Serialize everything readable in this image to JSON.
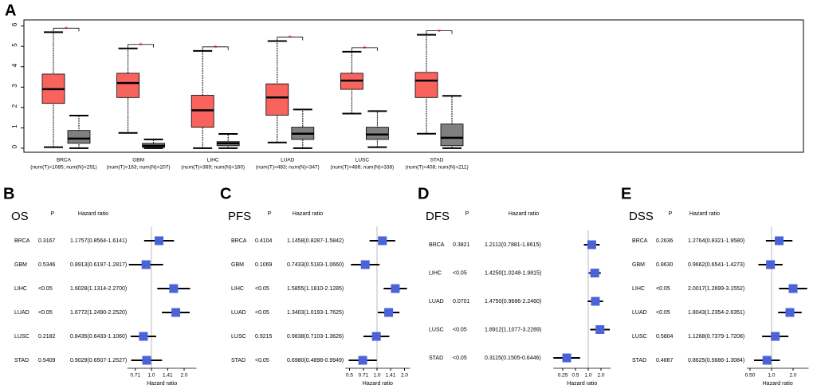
{
  "chart_data": [
    {
      "type": "box",
      "panel": "A",
      "categories": [
        "BRCA",
        "GBM",
        "LIHC",
        "LUAD",
        "LUSC",
        "STAD"
      ],
      "sample_labels": [
        "(num(T)=1085; num(N)=291)",
        "(num(T)=163; num(N)=207)",
        "(num(T)=369; num(N)=160)",
        "(num(T)=483; num(N)=347)",
        "(num(T)=486; num(N)=338)",
        "(num(T)=408; num(N)=211)"
      ],
      "significance": "*",
      "series": [
        {
          "color": "#f8635e",
          "values": [
            [
              0.05,
              2.2,
              2.9,
              3.64,
              5.7
            ],
            [
              0.75,
              2.49,
              3.2,
              3.68,
              4.9
            ],
            [
              0,
              1.03,
              1.86,
              2.6,
              4.78
            ],
            [
              0.28,
              1.62,
              2.49,
              3.16,
              5.26
            ],
            [
              1.7,
              2.89,
              3.32,
              3.68,
              4.74
            ],
            [
              0.71,
              2.49,
              3.32,
              3.72,
              5.57
            ]
          ]
        },
        {
          "color": "#808080",
          "values": [
            [
              0,
              0.24,
              0.47,
              0.87,
              1.6
            ],
            [
              0,
              0.04,
              0.12,
              0.24,
              0.43
            ],
            [
              0,
              0.12,
              0.24,
              0.32,
              0.7
            ],
            [
              0,
              0.43,
              0.71,
              1.03,
              1.9
            ],
            [
              0.05,
              0.43,
              0.67,
              1.03,
              1.82
            ],
            [
              0,
              0.12,
              0.51,
              1.19,
              2.57
            ]
          ]
        }
      ],
      "ylim": [
        -0.2,
        6.3
      ],
      "yticks": [
        0,
        1,
        2,
        3,
        4,
        5,
        6
      ]
    },
    {
      "type": "forest",
      "panel": "B",
      "title": "OS",
      "p_header": "P",
      "hr_header": "Hazard ratio",
      "x_label": "Hazard ratio",
      "log_scale": true,
      "color": "#4b63d8",
      "categories": [
        "BRCA",
        "GBM",
        "LIHC",
        "LUAD",
        "LUSC",
        "STAD"
      ],
      "p_values": [
        "0.3167",
        "0.5346",
        "<0.05",
        "<0.05",
        "0.2182",
        "0.5409"
      ],
      "values": [
        1.1757,
        0.8913,
        1.6028,
        1.6772,
        0.8435,
        0.9029
      ],
      "lower": [
        0.8564,
        0.6197,
        1.1314,
        1.249,
        0.6433,
        0.6507
      ],
      "upper": [
        1.6141,
        1.2817,
        2.27,
        2.252,
        1.106,
        1.2527
      ],
      "value_labels": [
        "1.1757(0.8564-1.6141)",
        "0.8913(0.6197-1.2817)",
        "1.6028(1.1314-2.2700)",
        "1.6772(1.2490-2.2520)",
        "0.8435(0.6433-1.1060)",
        "0.9029(0.6507-1.2527)"
      ],
      "xlim": [
        0.6,
        2.6
      ],
      "xticks": [
        0.71,
        {
          "value": 1,
          "label": "1.0"
        },
        1.41,
        {
          "value": 2,
          "label": "2.0"
        }
      ]
    },
    {
      "type": "forest",
      "panel": "C",
      "title": "PFS",
      "p_header": "P",
      "hr_header": "Hazard ratio",
      "x_label": "Hazard ratio",
      "log_scale": true,
      "color": "#4b63d8",
      "categories": [
        "BRCA",
        "GBM",
        "LIHC",
        "LUAD",
        "LUSC",
        "STAD"
      ],
      "p_values": [
        "0.4104",
        "0.1069",
        "<0.05",
        "<0.05",
        "0.9215",
        "<0.05"
      ],
      "values": [
        1.1458,
        0.7433,
        1.5855,
        1.3403,
        0.9838,
        0.698
      ],
      "lower": [
        0.8287,
        0.5183,
        1.181,
        1.0193,
        0.7103,
        0.4898
      ],
      "upper": [
        1.5842,
        1.066,
        2.1285,
        1.7625,
        1.3626,
        0.9949
      ],
      "value_labels": [
        "1.1458(0.8287-1.5842)",
        "0.7433(0.5183-1.0660)",
        "1.5855(1.1810-2.1285)",
        "1.3403(1.0193-1.7625)",
        "0.9838(0.7103-1.3626)",
        "0.6980(0.4898-0.9949)"
      ],
      "xlim": [
        0.45,
        2.3
      ],
      "xticks": [
        0.5,
        0.71,
        {
          "value": 1,
          "label": "1.0"
        },
        1.41,
        {
          "value": 2,
          "label": "2.0"
        }
      ]
    },
    {
      "type": "forest",
      "panel": "D",
      "title": "DFS",
      "p_header": "P",
      "hr_header": "Hazard ratio",
      "x_label": "Hazard ratio",
      "log_scale": true,
      "color": "#4b63d8",
      "categories": [
        "BRCA",
        "LIHC",
        "LUAD",
        "LUSC",
        "STAD"
      ],
      "p_values": [
        "0.3821",
        "<0.05",
        "0.0701",
        "<0.05",
        "<0.05"
      ],
      "values": [
        1.2112,
        1.425,
        1.475,
        1.8912,
        0.3115
      ],
      "lower": [
        0.7881,
        1.0248,
        0.9686,
        1.1077,
        0.1505
      ],
      "upper": [
        1.8615,
        1.9815,
        2.246,
        3.2289,
        0.6446
      ],
      "value_labels": [
        "1.2112(0.7881-1.8615)",
        "1.4250(1.0248-1.9815)",
        "1.4750(0.9686-2.2460)",
        "1.8912(1.1077-3.2289)",
        "0.3115(0.1505-0.6446)"
      ],
      "xlim": [
        0.15,
        3.4
      ],
      "xticks": [
        0.25,
        0.5,
        {
          "value": 1,
          "label": "1.0"
        },
        {
          "value": 2,
          "label": "2.0"
        }
      ]
    },
    {
      "type": "forest",
      "panel": "E",
      "title": "DSS",
      "p_header": "P",
      "hr_header": "Hazard ratio",
      "x_label": "Hazard ratio",
      "log_scale": true,
      "color": "#4b63d8",
      "categories": [
        "BRCA",
        "GBM",
        "LIHC",
        "LUAD",
        "LUSC",
        "STAD"
      ],
      "p_values": [
        "0.2636",
        "0.8630",
        "<0.05",
        "<0.05",
        "0.5804",
        "0.4867"
      ],
      "values": [
        1.2764,
        0.9662,
        2.0017,
        1.8043,
        1.1268,
        0.8625
      ],
      "lower": [
        0.8321,
        0.6541,
        1.2699,
        1.2354,
        0.7379,
        0.5686
      ],
      "upper": [
        1.958,
        1.4273,
        3.1552,
        2.6351,
        1.7208,
        1.3084
      ],
      "value_labels": [
        "1.2764(0.8321-1.9580)",
        "0.9662(0.6541-1.4273)",
        "2.0017(1.2699-3.1552)",
        "1.8043(1.2354-2.6351)",
        "1.1268(0.7379-1.7208)",
        "0.8625(0.5686-1.3084)"
      ],
      "xlim": [
        0.45,
        3.3
      ],
      "xticks": [
        {
          "value": 0.5,
          "label": "0.50"
        },
        {
          "value": 1,
          "label": "1.0"
        },
        {
          "value": 2,
          "label": "2.0"
        }
      ]
    }
  ]
}
